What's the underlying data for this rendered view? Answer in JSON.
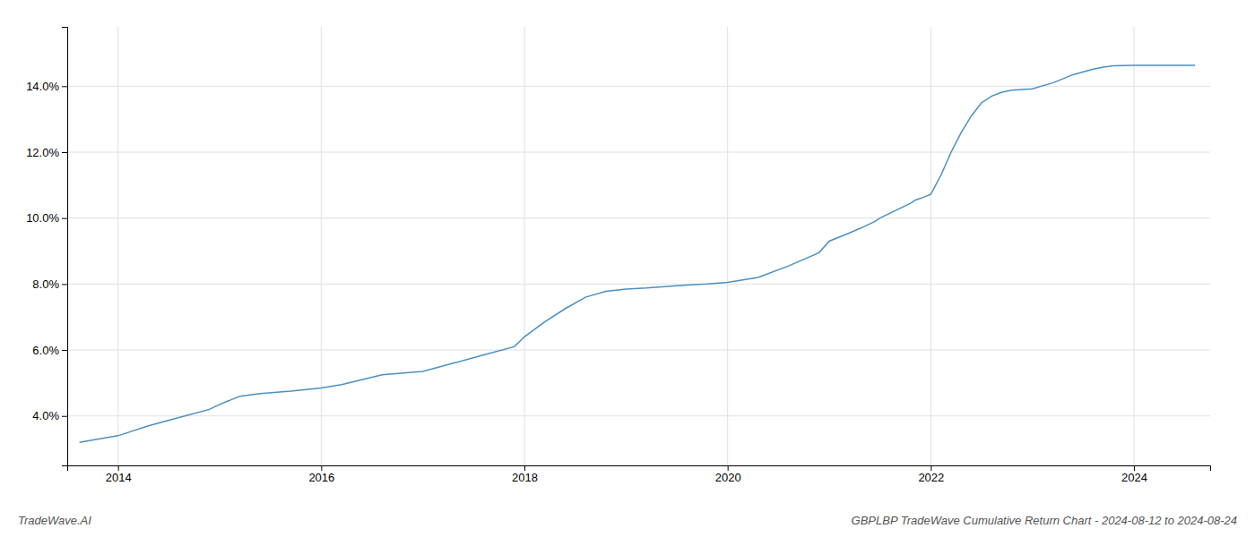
{
  "chart_data": {
    "type": "line",
    "title": "GBPLBP TradeWave Cumulative Return Chart - 2024-08-12 to 2024-08-24",
    "annotations": [
      "TradeWave.AI"
    ],
    "color": "#4a90c4",
    "grid": true,
    "x": [
      2013.62,
      2014.0,
      2014.3,
      2014.6,
      2014.9,
      2015.0,
      2015.2,
      2015.4,
      2015.7,
      2016.0,
      2016.2,
      2016.4,
      2016.6,
      2017.0,
      2017.3,
      2017.6,
      2017.9,
      2018.0,
      2018.2,
      2018.4,
      2018.6,
      2018.8,
      2019.0,
      2019.2,
      2019.5,
      2019.8,
      2020.0,
      2020.3,
      2020.6,
      2020.9,
      2021.0,
      2021.2,
      2021.35,
      2021.45,
      2021.5,
      2021.6,
      2021.7,
      2021.8,
      2021.85,
      2021.9,
      2022.0,
      2022.1,
      2022.2,
      2022.3,
      2022.4,
      2022.5,
      2022.6,
      2022.7,
      2022.8,
      2022.9,
      2023.0,
      2023.2,
      2023.4,
      2023.6,
      2023.7,
      2023.8,
      2024.0,
      2024.3,
      2024.6
    ],
    "values": [
      3.2,
      3.4,
      3.7,
      3.95,
      4.2,
      4.35,
      4.6,
      4.68,
      4.75,
      4.85,
      4.95,
      5.1,
      5.25,
      5.35,
      5.6,
      5.85,
      6.1,
      6.4,
      6.85,
      7.25,
      7.6,
      7.78,
      7.85,
      7.88,
      7.95,
      8.0,
      8.05,
      8.2,
      8.55,
      8.95,
      9.3,
      9.55,
      9.75,
      9.9,
      10.0,
      10.15,
      10.3,
      10.45,
      10.55,
      10.6,
      10.72,
      11.3,
      12.0,
      12.6,
      13.1,
      13.5,
      13.7,
      13.82,
      13.88,
      13.9,
      13.92,
      14.1,
      14.35,
      14.52,
      14.58,
      14.62,
      14.63,
      14.63,
      14.63
    ],
    "xlim": [
      2013.5,
      2024.75
    ],
    "ylim": [
      2.5,
      15.8
    ],
    "xticks": [
      2014,
      2016,
      2018,
      2020,
      2022,
      2024
    ],
    "yticks": [
      {
        "value": 4.0,
        "label": "4.0%"
      },
      {
        "value": 6.0,
        "label": "6.0%"
      },
      {
        "value": 8.0,
        "label": "8.0%"
      },
      {
        "value": 10.0,
        "label": "10.0%"
      },
      {
        "value": 12.0,
        "label": "12.0%"
      },
      {
        "value": 14.0,
        "label": "14.0%"
      }
    ]
  }
}
